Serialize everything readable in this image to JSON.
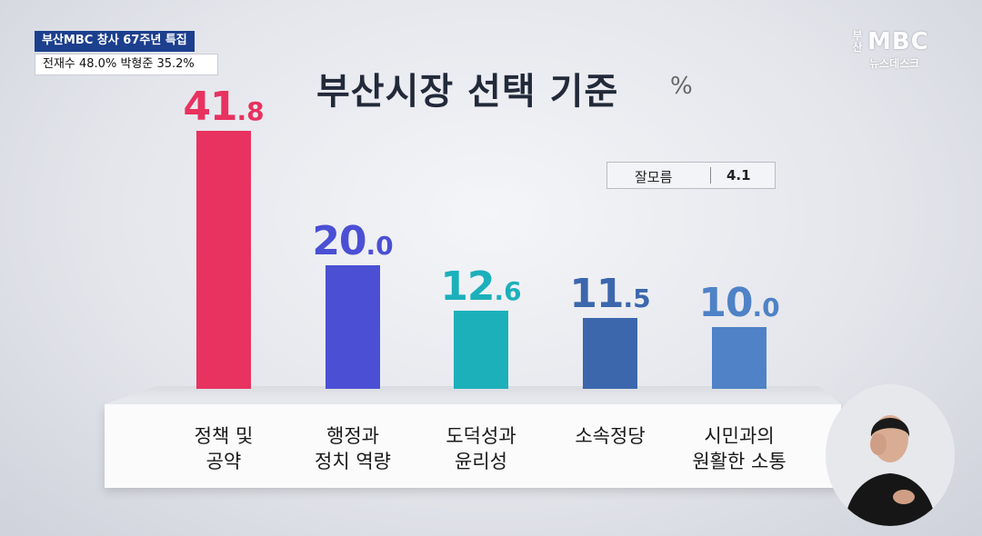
{
  "caption": {
    "line1": "부산MBC 창사 67주년 특집",
    "line2": "전재수 48.0% 박형준 35.2%"
  },
  "logo": {
    "city": "부산",
    "brand": "MBC",
    "sub": "뉴스데스크"
  },
  "title": "부산시장 선택 기준",
  "unit": "%",
  "note": {
    "label": "잘모름",
    "value": "4.1"
  },
  "chart_data": {
    "type": "bar",
    "title": "부산시장 선택 기준",
    "ylabel": "%",
    "categories": [
      "정책 및\n공약",
      "행정과\n정치 역량",
      "도덕성과\n윤리성",
      "소속정당",
      "시민과의\n원활한 소통"
    ],
    "values": [
      41.8,
      20.0,
      12.6,
      11.5,
      10.0
    ],
    "value_labels": [
      "41.8",
      "20.0",
      "12.6",
      "11.5",
      "10.0"
    ],
    "colors": [
      "#e8325f",
      "#4b4fd4",
      "#1cb0bb",
      "#3c67ad",
      "#4f82c6"
    ],
    "ylim": [
      0,
      41.8
    ],
    "grid": false,
    "legend": "none"
  }
}
